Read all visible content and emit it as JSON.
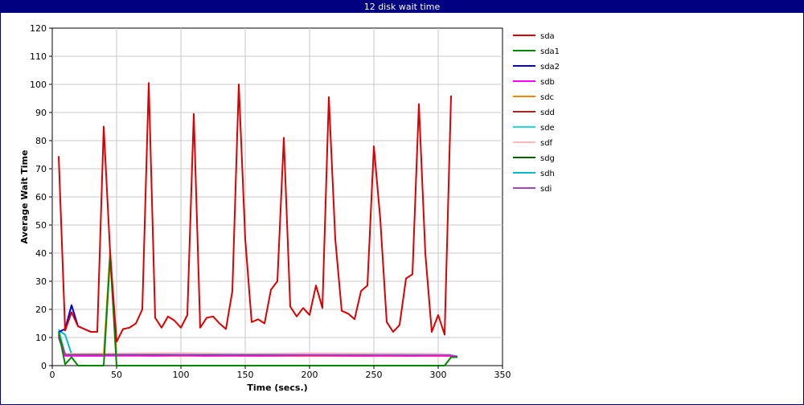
{
  "window": {
    "title": "12 disk wait time"
  },
  "chart_data": {
    "type": "line",
    "title": "12 disk wait time",
    "xlabel": "Time (secs.)",
    "ylabel": "Average Wait Time",
    "xlim": [
      0,
      350
    ],
    "ylim": [
      0,
      120
    ],
    "xticks": [
      0,
      50,
      100,
      150,
      200,
      250,
      300,
      350
    ],
    "yticks": [
      0,
      10,
      20,
      30,
      40,
      50,
      60,
      70,
      80,
      90,
      100,
      110,
      120
    ],
    "grid": true,
    "legend_position": "right",
    "series": [
      {
        "name": "sda",
        "color": "#dd0000",
        "points": [
          [
            5,
            74.5
          ],
          [
            10,
            12.5
          ],
          [
            15,
            19
          ],
          [
            20,
            14
          ],
          [
            25,
            13
          ],
          [
            30,
            12
          ],
          [
            35,
            12
          ],
          [
            40,
            85
          ],
          [
            45,
            40
          ],
          [
            50,
            8.5
          ],
          [
            55,
            13
          ],
          [
            60,
            13.5
          ],
          [
            65,
            15
          ],
          [
            70,
            20
          ],
          [
            75,
            100.5
          ],
          [
            80,
            17
          ],
          [
            85,
            13.5
          ],
          [
            90,
            17.5
          ],
          [
            95,
            16
          ],
          [
            100,
            13.5
          ],
          [
            105,
            18
          ],
          [
            110,
            89.5
          ],
          [
            115,
            13.5
          ],
          [
            120,
            17
          ],
          [
            125,
            17.5
          ],
          [
            130,
            15
          ],
          [
            135,
            13
          ],
          [
            140,
            26.5
          ],
          [
            145,
            100
          ],
          [
            150,
            45
          ],
          [
            155,
            15.5
          ],
          [
            160,
            16.5
          ],
          [
            165,
            15
          ],
          [
            170,
            27
          ],
          [
            175,
            30
          ],
          [
            180,
            81
          ],
          [
            185,
            21
          ],
          [
            190,
            17.5
          ],
          [
            195,
            20.5
          ],
          [
            200,
            18
          ],
          [
            205,
            28.5
          ],
          [
            210,
            20.5
          ],
          [
            215,
            95.5
          ],
          [
            220,
            45
          ],
          [
            225,
            19.5
          ],
          [
            230,
            18.5
          ],
          [
            235,
            16.5
          ],
          [
            240,
            26.5
          ],
          [
            245,
            28.5
          ],
          [
            250,
            78
          ],
          [
            255,
            52
          ],
          [
            260,
            15.5
          ],
          [
            265,
            12
          ],
          [
            270,
            14.5
          ],
          [
            275,
            31
          ],
          [
            280,
            32.5
          ],
          [
            285,
            93
          ],
          [
            290,
            40
          ],
          [
            295,
            12
          ],
          [
            300,
            18
          ],
          [
            305,
            11
          ],
          [
            310,
            96
          ]
        ]
      },
      {
        "name": "sda1",
        "color": "#008800",
        "points": [
          [
            5,
            12
          ],
          [
            10,
            0.5
          ],
          [
            15,
            3
          ],
          [
            20,
            0
          ],
          [
            40,
            0
          ],
          [
            45,
            39
          ],
          [
            50,
            0
          ],
          [
            300,
            0
          ],
          [
            305,
            0
          ],
          [
            310,
            3
          ],
          [
            315,
            3
          ]
        ]
      },
      {
        "name": "sda2",
        "color": "#0000dd",
        "points": [
          [
            5,
            12
          ],
          [
            10,
            13
          ],
          [
            15,
            21.5
          ],
          [
            20,
            14
          ],
          [
            25,
            13
          ],
          [
            30,
            12
          ],
          [
            35,
            12
          ]
        ]
      },
      {
        "name": "sdb",
        "color": "#ff00ff",
        "points": [
          [
            5,
            10
          ],
          [
            10,
            3.5
          ],
          [
            20,
            3.5
          ],
          [
            40,
            3.5
          ],
          [
            60,
            3.6
          ],
          [
            80,
            3.5
          ],
          [
            100,
            3.7
          ],
          [
            120,
            3.5
          ],
          [
            140,
            3.6
          ],
          [
            160,
            3.5
          ],
          [
            180,
            3.6
          ],
          [
            200,
            3.7
          ],
          [
            220,
            3.6
          ],
          [
            240,
            3.5
          ],
          [
            260,
            3.6
          ],
          [
            280,
            3.5
          ],
          [
            300,
            3.6
          ],
          [
            310,
            3.5
          ],
          [
            315,
            3.2
          ]
        ]
      },
      {
        "name": "sdc",
        "color": "#ee8800",
        "points": [
          [
            5,
            10
          ],
          [
            10,
            3.5
          ],
          [
            40,
            3.5
          ],
          [
            45,
            41
          ],
          [
            50,
            3.5
          ],
          [
            310,
            3.4
          ]
        ]
      },
      {
        "name": "sdd",
        "color": "#aa2222",
        "points": [
          [
            5,
            11
          ],
          [
            10,
            3.8
          ],
          [
            310,
            3.6
          ]
        ]
      },
      {
        "name": "sde",
        "color": "#22dddd",
        "points": [
          [
            5,
            13
          ],
          [
            10,
            4
          ],
          [
            50,
            4
          ],
          [
            100,
            4
          ],
          [
            310,
            3.8
          ],
          [
            315,
            3.2
          ]
        ]
      },
      {
        "name": "sdf",
        "color": "#ffbbbb",
        "points": [
          [
            5,
            11
          ],
          [
            10,
            4.2
          ],
          [
            50,
            4.3
          ],
          [
            100,
            4.5
          ],
          [
            150,
            4.2
          ],
          [
            200,
            4.4
          ],
          [
            250,
            4.3
          ],
          [
            300,
            4.2
          ],
          [
            310,
            3.9
          ]
        ]
      },
      {
        "name": "sdg",
        "color": "#006600",
        "points": [
          [
            5,
            11
          ],
          [
            10,
            3.8
          ],
          [
            310,
            3.7
          ]
        ]
      },
      {
        "name": "sdh",
        "color": "#00bbcc",
        "points": [
          [
            5,
            12.5
          ],
          [
            10,
            11
          ],
          [
            15,
            4
          ],
          [
            50,
            3.8
          ],
          [
            310,
            3.6
          ],
          [
            315,
            3.3
          ]
        ]
      },
      {
        "name": "sdi",
        "color": "#aa44bb",
        "points": [
          [
            5,
            10.5
          ],
          [
            10,
            3.6
          ],
          [
            310,
            3.5
          ]
        ]
      }
    ]
  }
}
